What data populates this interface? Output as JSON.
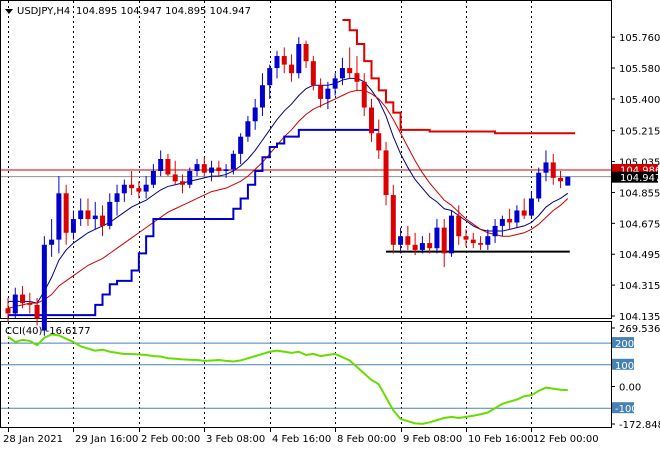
{
  "header": {
    "symbol": "USDJPY,H4",
    "ohlc": "104.895 104.947 104.895 104.947"
  },
  "indicator": {
    "label": "CCI(40) -16.6177"
  },
  "colors": {
    "background": "#ffffff",
    "bull_candle": "#0000cc",
    "bear_candle": "#dd0000",
    "fast_ma": "#000080",
    "slow_ma": "#cc0000",
    "support_line": "#0000cc",
    "resistance_line": "#dd0000",
    "bid_line": "#cc0000",
    "cci_line": "#66dd00",
    "level_lines": "#4682b4",
    "grid": "#000000",
    "ask_badge": "#cc0000",
    "bid_badge": "#000000"
  },
  "chart_data": [
    {
      "type": "candlestick",
      "series": [
        {
          "name": "USDJPY,H4",
          "values_note": "OHLC candles",
          "candles": [
            [
              104.18,
              104.24,
              104.1,
              104.15
            ],
            [
              104.15,
              104.3,
              104.12,
              104.26
            ],
            [
              104.26,
              104.31,
              104.18,
              104.21
            ],
            [
              104.21,
              104.27,
              104.15,
              104.2
            ],
            [
              104.2,
              104.24,
              104.08,
              104.12
            ],
            [
              104.05,
              104.6,
              104.02,
              104.55
            ],
            [
              104.55,
              104.7,
              104.48,
              104.58
            ],
            [
              104.58,
              104.95,
              104.5,
              104.85
            ],
            [
              104.85,
              104.9,
              104.55,
              104.62
            ],
            [
              104.62,
              104.75,
              104.58,
              104.7
            ],
            [
              104.7,
              104.82,
              104.66,
              104.75
            ],
            [
              104.75,
              104.82,
              104.66,
              104.7
            ],
            [
              104.7,
              104.8,
              104.64,
              104.72
            ],
            [
              104.72,
              104.78,
              104.6,
              104.66
            ],
            [
              104.66,
              104.85,
              104.64,
              104.8
            ],
            [
              104.8,
              104.9,
              104.72,
              104.85
            ],
            [
              104.85,
              104.93,
              104.8,
              104.9
            ],
            [
              104.9,
              104.98,
              104.84,
              104.88
            ],
            [
              104.88,
              104.92,
              104.82,
              104.86
            ],
            [
              104.86,
              104.95,
              104.82,
              104.9
            ],
            [
              104.9,
              105.02,
              104.88,
              104.98
            ],
            [
              104.98,
              105.1,
              104.95,
              105.05
            ],
            [
              105.05,
              105.08,
              104.95,
              104.96
            ],
            [
              104.96,
              105.04,
              104.9,
              104.92
            ],
            [
              104.92,
              104.96,
              104.85,
              104.9
            ],
            [
              104.9,
              105.0,
              104.88,
              104.98
            ],
            [
              104.98,
              105.05,
              104.95,
              105.02
            ],
            [
              105.02,
              105.06,
              104.95,
              104.97
            ],
            [
              104.97,
              105.04,
              104.92,
              105.0
            ],
            [
              105.0,
              105.04,
              104.95,
              104.98
            ],
            [
              104.98,
              105.02,
              104.94,
              104.99
            ],
            [
              104.99,
              105.1,
              104.96,
              105.08
            ],
            [
              105.08,
              105.2,
              105.02,
              105.18
            ],
            [
              105.18,
              105.3,
              105.15,
              105.27
            ],
            [
              105.27,
              105.4,
              105.22,
              105.35
            ],
            [
              105.35,
              105.55,
              105.3,
              105.48
            ],
            [
              105.48,
              105.6,
              105.4,
              105.58
            ],
            [
              105.58,
              105.68,
              105.52,
              105.65
            ],
            [
              105.65,
              105.7,
              105.55,
              105.6
            ],
            [
              105.6,
              105.66,
              105.5,
              105.55
            ],
            [
              105.55,
              105.76,
              105.52,
              105.72
            ],
            [
              105.72,
              105.74,
              105.58,
              105.62
            ],
            [
              105.62,
              105.65,
              105.45,
              105.48
            ],
            [
              105.48,
              105.52,
              105.35,
              105.4
            ],
            [
              105.4,
              105.5,
              105.34,
              105.46
            ],
            [
              105.46,
              105.55,
              105.42,
              105.52
            ],
            [
              105.52,
              105.64,
              105.48,
              105.58
            ],
            [
              105.58,
              105.7,
              105.52,
              105.55
            ],
            [
              105.55,
              105.65,
              105.45,
              105.5
            ],
            [
              105.5,
              105.55,
              105.3,
              105.35
            ],
            [
              105.35,
              105.4,
              105.15,
              105.2
            ],
            [
              105.2,
              105.28,
              105.05,
              105.1
            ],
            [
              105.1,
              105.15,
              104.78,
              104.84
            ],
            [
              104.84,
              104.9,
              104.5,
              104.55
            ],
            [
              104.55,
              104.65,
              104.5,
              104.6
            ],
            [
              104.6,
              104.66,
              104.52,
              104.55
            ],
            [
              104.55,
              104.62,
              104.49,
              104.52
            ],
            [
              104.52,
              104.6,
              104.5,
              104.56
            ],
            [
              104.56,
              104.62,
              104.5,
              104.53
            ],
            [
              104.53,
              104.7,
              104.5,
              104.65
            ],
            [
              104.65,
              104.7,
              104.42,
              104.5
            ],
            [
              104.5,
              104.75,
              104.48,
              104.72
            ],
            [
              104.72,
              104.78,
              104.55,
              104.6
            ],
            [
              104.6,
              104.64,
              104.54,
              104.58
            ],
            [
              104.58,
              104.62,
              104.53,
              104.56
            ],
            [
              104.56,
              104.6,
              104.52,
              104.55
            ],
            [
              104.55,
              104.64,
              104.52,
              104.6
            ],
            [
              104.6,
              104.7,
              104.56,
              104.66
            ],
            [
              104.66,
              104.72,
              104.6,
              104.7
            ],
            [
              104.7,
              104.76,
              104.64,
              104.68
            ],
            [
              104.68,
              104.78,
              104.65,
              104.75
            ],
            [
              104.75,
              104.82,
              104.7,
              104.72
            ],
            [
              104.72,
              104.86,
              104.7,
              104.82
            ],
            [
              104.82,
              105.0,
              104.8,
              104.97
            ],
            [
              104.97,
              105.1,
              104.92,
              105.03
            ],
            [
              105.03,
              105.08,
              104.9,
              104.94
            ],
            [
              104.94,
              104.98,
              104.88,
              104.92
            ],
            [
              104.895,
              104.947,
              104.895,
              104.947
            ]
          ]
        }
      ],
      "overlays": [
        {
          "name": "fast_ma",
          "values": [
            104.22,
            104.22,
            104.22,
            104.22,
            104.21,
            104.28,
            104.36,
            104.46,
            104.52,
            104.56,
            104.59,
            104.62,
            104.64,
            104.66,
            104.68,
            104.71,
            104.74,
            104.77,
            104.79,
            104.81,
            104.84,
            104.87,
            104.89,
            104.9,
            104.91,
            104.92,
            104.93,
            104.94,
            104.95,
            104.95,
            104.96,
            104.98,
            105.01,
            105.05,
            105.1,
            105.16,
            105.22,
            105.28,
            105.33,
            105.37,
            105.42,
            105.46,
            105.48,
            105.48,
            105.48,
            105.49,
            105.51,
            105.52,
            105.52,
            105.5,
            105.45,
            105.39,
            105.3,
            105.18,
            105.08,
            105.0,
            104.93,
            104.88,
            104.83,
            104.8,
            104.76,
            104.75,
            104.72,
            104.69,
            104.66,
            104.64,
            104.63,
            104.63,
            104.63,
            104.64,
            104.65,
            104.66,
            104.68,
            104.72,
            104.77,
            104.8,
            104.82,
            104.85
          ]
        },
        {
          "name": "slow_ma",
          "values": [
            104.18,
            104.19,
            104.2,
            104.21,
            104.21,
            104.23,
            104.26,
            104.31,
            104.34,
            104.37,
            104.4,
            104.43,
            104.45,
            104.47,
            104.5,
            104.53,
            104.56,
            104.59,
            104.62,
            104.65,
            104.68,
            104.71,
            104.74,
            104.76,
            104.78,
            104.8,
            104.82,
            104.84,
            104.86,
            104.87,
            104.88,
            104.9,
            104.92,
            104.95,
            104.99,
            105.03,
            105.08,
            105.13,
            105.18,
            105.22,
            105.27,
            105.31,
            105.34,
            105.36,
            105.38,
            105.4,
            105.42,
            105.44,
            105.45,
            105.45,
            105.43,
            105.4,
            105.35,
            105.28,
            105.2,
            105.12,
            105.04,
            104.97,
            104.91,
            104.86,
            104.81,
            104.78,
            104.74,
            104.7,
            104.67,
            104.64,
            104.62,
            104.61,
            104.6,
            104.6,
            104.61,
            104.62,
            104.64,
            104.67,
            104.71,
            104.75,
            104.78,
            104.82
          ]
        },
        {
          "name": "support_step",
          "values": [
            104.14,
            104.14,
            104.14,
            104.14,
            104.14,
            104.14,
            104.14,
            104.14,
            104.14,
            104.14,
            104.14,
            104.14,
            104.2,
            104.26,
            104.32,
            104.34,
            104.34,
            104.4,
            104.5,
            104.6,
            104.7,
            104.7,
            104.7,
            104.7,
            104.7,
            104.7,
            104.7,
            104.7,
            104.7,
            104.7,
            104.7,
            104.76,
            104.82,
            104.9,
            104.98,
            105.06,
            105.12,
            105.14,
            105.18,
            105.18,
            105.22,
            105.22,
            105.22,
            105.22,
            105.22,
            105.22,
            105.22,
            105.22,
            105.22,
            105.22,
            105.22
          ]
        },
        {
          "name": "resistance_step",
          "values": [
            null,
            null,
            null,
            null,
            null,
            null,
            null,
            null,
            null,
            null,
            null,
            null,
            null,
            null,
            null,
            null,
            null,
            null,
            null,
            null,
            null,
            null,
            null,
            null,
            null,
            null,
            null,
            null,
            null,
            null,
            null,
            null,
            null,
            null,
            null,
            null,
            null,
            null,
            null,
            null,
            null,
            null,
            null,
            null,
            null,
            null,
            105.86,
            105.8,
            105.72,
            105.62,
            105.52,
            105.45,
            105.38,
            105.32,
            105.22,
            105.22,
            105.22,
            105.22,
            105.21,
            105.21,
            105.21,
            105.21,
            105.21,
            105.21,
            105.21,
            105.21,
            105.21,
            105.2,
            105.2,
            105.2,
            105.2,
            105.2,
            105.2,
            105.2,
            105.2,
            105.2,
            105.2,
            105.2
          ]
        }
      ],
      "horizontal_segments": [
        {
          "name": "support_level",
          "value": 104.51
        }
      ],
      "price_levels": {
        "ask": 104.986,
        "bid": 104.947
      },
      "ylim": [
        104.135,
        105.86
      ],
      "y_ticks": [
        "105.760",
        "105.580",
        "105.400",
        "105.215",
        "105.035",
        "104.855",
        "104.675",
        "104.495",
        "104.315",
        "104.135"
      ],
      "x_ticks": [
        "28 Jan 2021",
        "29 Jan 16:00",
        "2 Feb 00:00",
        "3 Feb 08:00",
        "4 Feb 16:00",
        "8 Feb 00:00",
        "9 Feb 08:00",
        "10 Feb 16:00",
        "12 Feb 00:00"
      ],
      "ask_label": "104.986",
      "bid_label": "104.947"
    },
    {
      "type": "line",
      "series": [
        {
          "name": "CCI(40)",
          "values": [
            230,
            205,
            215,
            210,
            190,
            225,
            240,
            235,
            220,
            205,
            185,
            175,
            165,
            170,
            160,
            155,
            150,
            150,
            148,
            145,
            140,
            138,
            130,
            128,
            125,
            123,
            122,
            118,
            120,
            122,
            118,
            115,
            120,
            130,
            140,
            150,
            160,
            165,
            160,
            155,
            160,
            145,
            150,
            140,
            145,
            150,
            135,
            120,
            90,
            60,
            30,
            10,
            -50,
            -110,
            -150,
            -160,
            -170,
            -172,
            -165,
            -155,
            -145,
            -140,
            -145,
            -140,
            -135,
            -128,
            -120,
            -100,
            -80,
            -70,
            -60,
            -45,
            -40,
            -20,
            -5,
            -10,
            -15,
            -16.6177
          ]
        }
      ],
      "levels": [
        200,
        100,
        -100
      ],
      "ylim": [
        -172.848,
        269.5362
      ],
      "y_ticks": [
        "269.5362",
        "200",
        "100",
        "0.00",
        "-100",
        "-172.848"
      ]
    }
  ]
}
